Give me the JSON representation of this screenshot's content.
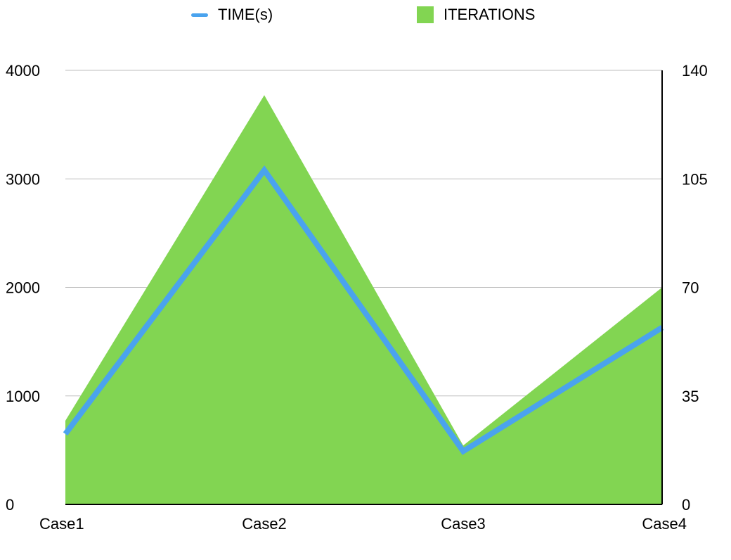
{
  "colors": {
    "time": "#4aa3ee",
    "iterations": "#82d552",
    "grid": "#bdbdbd",
    "axis": "#000000"
  },
  "legend": {
    "time_label": "TIME(s)",
    "iterations_label": "ITERATIONS"
  },
  "chart_data": {
    "type": "area",
    "categories": [
      "Case1",
      "Case2",
      "Case3",
      "Case4"
    ],
    "series": [
      {
        "name": "ITERATIONS",
        "type": "area",
        "axis": "right",
        "values": [
          27,
          132,
          19,
          70
        ]
      },
      {
        "name": "TIME(s)",
        "type": "line",
        "axis": "left",
        "values": [
          650,
          3080,
          490,
          1630
        ]
      }
    ],
    "y_left": {
      "range": [
        0,
        4000
      ],
      "ticks": [
        "0",
        "1000",
        "2000",
        "3000",
        "4000"
      ]
    },
    "y_right": {
      "range": [
        0,
        140
      ],
      "ticks": [
        "0",
        "35",
        "70",
        "105",
        "140"
      ]
    },
    "grid": true,
    "legend_position": "top"
  }
}
